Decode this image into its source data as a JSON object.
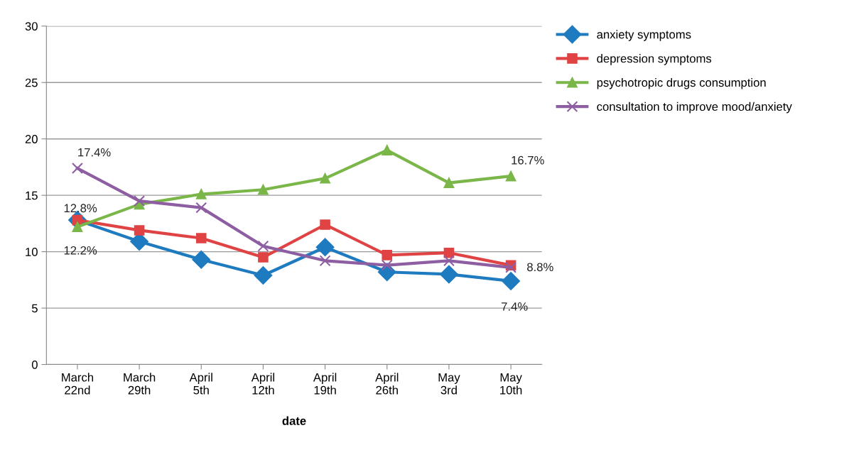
{
  "chart_data": {
    "type": "line",
    "xlabel": "date",
    "categories": [
      "March\n22nd",
      "March\n29th",
      "April\n5th",
      "April\n12th",
      "April\n19th",
      "April\n26th",
      "May\n3rd",
      "May\n10th"
    ],
    "series": [
      {
        "name": "anxiety symptoms",
        "color": "#1f7bc0",
        "marker": "diamond",
        "values": [
          12.8,
          10.9,
          9.3,
          7.9,
          10.4,
          8.2,
          8.0,
          7.4
        ]
      },
      {
        "name": "depression symptoms",
        "color": "#e04343",
        "marker": "square",
        "values": [
          12.8,
          11.9,
          11.2,
          9.5,
          12.4,
          9.7,
          9.9,
          8.8
        ]
      },
      {
        "name": "psychotropic drugs consumption",
        "color": "#7ab648",
        "marker": "triangle",
        "values": [
          12.2,
          14.2,
          15.1,
          15.5,
          16.5,
          19.0,
          16.1,
          16.7
        ]
      },
      {
        "name": "consultation to improve mood/anxiety",
        "color": "#8e5ea2",
        "marker": "cross",
        "values": [
          17.4,
          14.5,
          13.9,
          10.5,
          9.2,
          8.8,
          9.2,
          8.6
        ]
      }
    ],
    "annotations": [
      {
        "text": "17.4%",
        "x": "March\n22nd",
        "y": 17.4
      },
      {
        "text": "12.8%",
        "x": "March\n22nd",
        "y": 12.8
      },
      {
        "text": "12.2%",
        "x": "March\n22nd",
        "y": 12.2
      },
      {
        "text": "16.7%",
        "x": "May\n10th",
        "y": 16.7
      },
      {
        "text": "8.8%",
        "x": "May\n10th",
        "y": 8.8
      },
      {
        "text": "7.4%",
        "x": "May\n10th",
        "y": 7.4
      }
    ],
    "ylim": [
      0,
      30
    ],
    "yticks": [
      0,
      5,
      10,
      15,
      20,
      25,
      30
    ],
    "grid": "y",
    "legend": "right",
    "line_style": "solid"
  }
}
